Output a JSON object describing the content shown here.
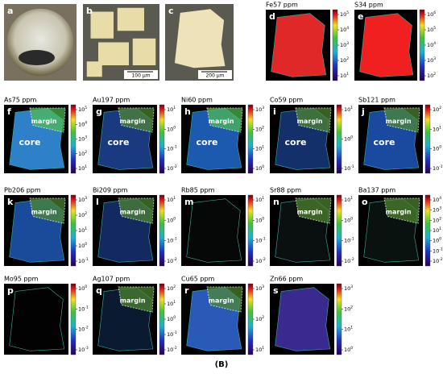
{
  "tick_base": "10",
  "caption": "(B)",
  "panels": [
    {
      "letter": "a"
    },
    {
      "letter": "b",
      "scale": "100 µm"
    },
    {
      "letter": "c",
      "scale": "200 µm"
    },
    {
      "letter": "d",
      "label": "Fe57 ppm",
      "ticks": [
        "5",
        "4",
        "3",
        "2",
        "1"
      ]
    },
    {
      "letter": "e",
      "label": "S34 ppm",
      "ticks": [
        "6",
        "5",
        "4",
        "3",
        "2"
      ]
    },
    {
      "letter": "f",
      "label": "As75 ppm",
      "ticks": [
        "5",
        "4",
        "3",
        "2",
        "1"
      ],
      "notes": [
        "margin",
        "core"
      ]
    },
    {
      "letter": "g",
      "label": "Au197 ppm",
      "ticks": [
        "1",
        "0",
        "-1",
        "-2"
      ],
      "notes": [
        "margin",
        "core"
      ]
    },
    {
      "letter": "h",
      "label": "Ni60 ppm",
      "ticks": [
        "3",
        "2",
        "1",
        "0"
      ],
      "notes": [
        "margin",
        "core"
      ]
    },
    {
      "letter": "i",
      "label": "Co59 ppm",
      "ticks": [
        "1",
        "0",
        "-1"
      ],
      "notes": [
        "margin",
        "core"
      ]
    },
    {
      "letter": "j",
      "label": "Sb121 ppm",
      "ticks": [
        "2",
        "1",
        "0",
        "-1"
      ],
      "notes": [
        "margin",
        "core"
      ]
    },
    {
      "letter": "k",
      "label": "Pb206 ppm",
      "ticks": [
        "3",
        "2",
        "1",
        "0",
        "-1"
      ],
      "notes": [
        "margin"
      ]
    },
    {
      "letter": "l",
      "label": "Bi209 ppm",
      "ticks": [
        "1",
        "0",
        "-1",
        "-2"
      ],
      "notes": [
        "margin"
      ]
    },
    {
      "letter": "m",
      "label": "Rb85 ppm",
      "ticks": [
        "1",
        "0",
        "-1",
        "-2"
      ]
    },
    {
      "letter": "n",
      "label": "Sr88 ppm",
      "ticks": [
        "1",
        "0",
        "-1",
        "-2"
      ],
      "notes": [
        "margin"
      ]
    },
    {
      "letter": "o",
      "label": "Ba137 ppm",
      "ticks": [
        "4",
        "3",
        "2",
        "1",
        "0",
        "-1",
        "-2"
      ],
      "notes": [
        "margin"
      ]
    },
    {
      "letter": "p",
      "label": "Mo95 ppm",
      "ticks": [
        "0",
        "-1",
        "-2",
        "-3"
      ]
    },
    {
      "letter": "q",
      "label": "Ag107 ppm",
      "ticks": [
        "2",
        "1",
        "0",
        "-1",
        "-2"
      ],
      "notes": [
        "margin"
      ]
    },
    {
      "letter": "r",
      "label": "Cu65 ppm",
      "ticks": [
        "3",
        "2",
        "1"
      ],
      "notes": [
        "margin"
      ]
    },
    {
      "letter": "s",
      "label": "Zn66 ppm",
      "ticks": [
        "3",
        "2",
        "1",
        "0"
      ]
    }
  ]
}
